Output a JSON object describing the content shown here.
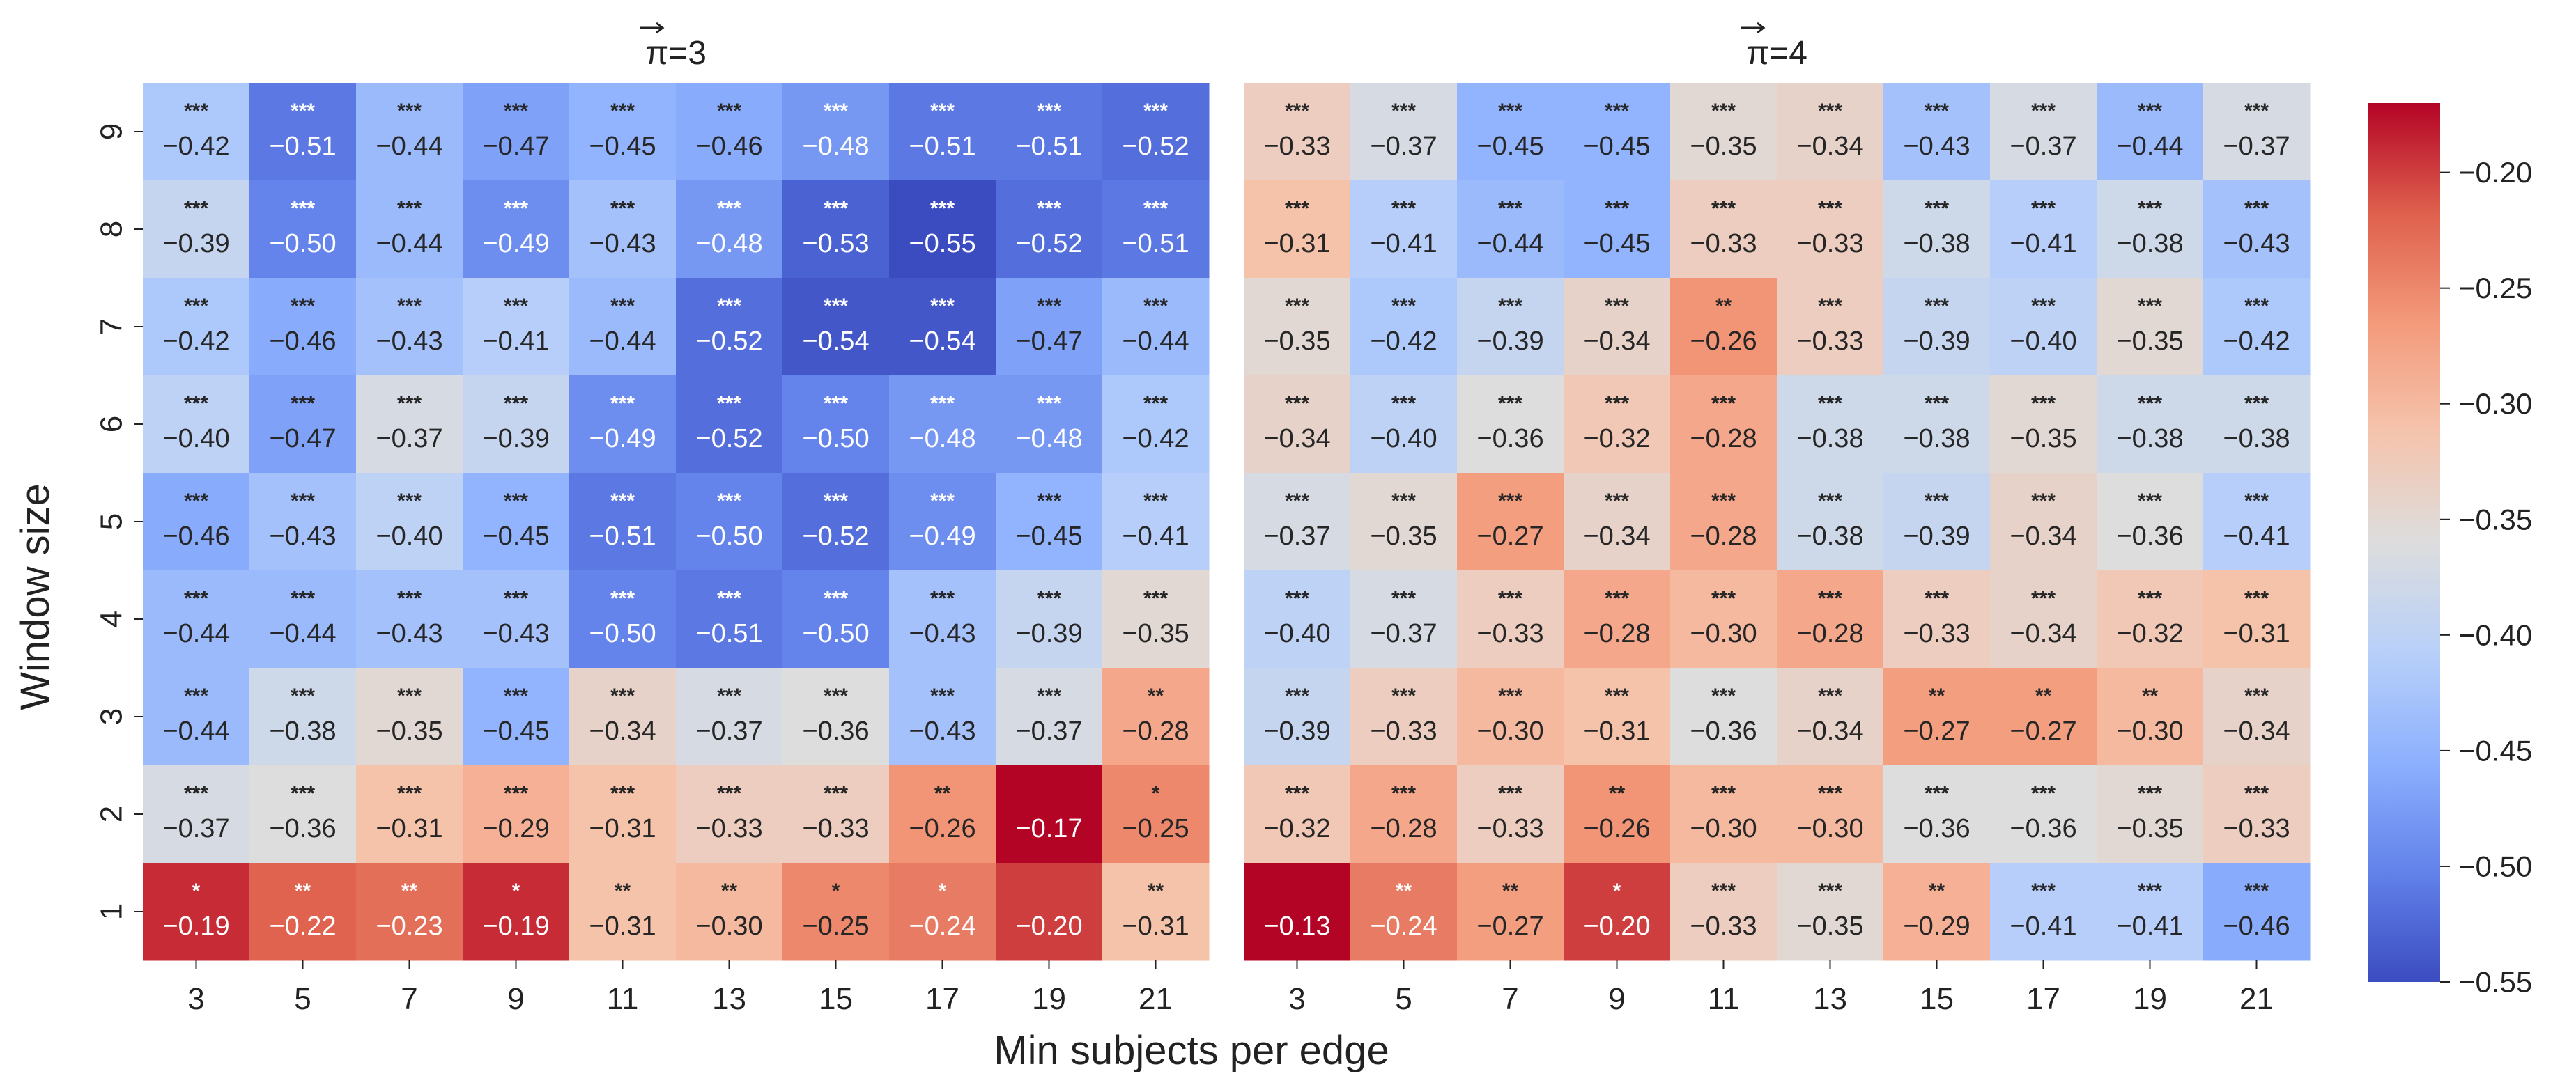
{
  "chart_data": {
    "type": "heatmap",
    "xlabel": "Min subjects per edge",
    "ylabel": "Window size",
    "x_categories": [
      "3",
      "5",
      "7",
      "9",
      "11",
      "13",
      "15",
      "17",
      "19",
      "21"
    ],
    "y_categories": [
      "9",
      "8",
      "7",
      "6",
      "5",
      "4",
      "3",
      "2",
      "1"
    ],
    "colorbar": {
      "colormap": "coolwarm",
      "vmin": -0.55,
      "vmax": -0.17,
      "ticks": [
        -0.2,
        -0.25,
        -0.3,
        -0.35,
        -0.4,
        -0.45,
        -0.5,
        -0.55
      ],
      "tick_labels": [
        "−0.20",
        "−0.25",
        "−0.30",
        "−0.35",
        "−0.40",
        "−0.45",
        "−0.50",
        "−0.55"
      ]
    },
    "panels": [
      {
        "title": "π⃗=3",
        "title_symbol": "π",
        "title_value": "=3",
        "values": [
          [
            -0.42,
            -0.51,
            -0.44,
            -0.47,
            -0.45,
            -0.46,
            -0.48,
            -0.51,
            -0.51,
            -0.52
          ],
          [
            -0.39,
            -0.5,
            -0.44,
            -0.49,
            -0.43,
            -0.48,
            -0.53,
            -0.55,
            -0.52,
            -0.51
          ],
          [
            -0.42,
            -0.46,
            -0.43,
            -0.41,
            -0.44,
            -0.52,
            -0.54,
            -0.54,
            -0.47,
            -0.44
          ],
          [
            -0.4,
            -0.47,
            -0.37,
            -0.39,
            -0.49,
            -0.52,
            -0.5,
            -0.48,
            -0.48,
            -0.42
          ],
          [
            -0.46,
            -0.43,
            -0.4,
            -0.45,
            -0.51,
            -0.5,
            -0.52,
            -0.49,
            -0.45,
            -0.41
          ],
          [
            -0.44,
            -0.44,
            -0.43,
            -0.43,
            -0.5,
            -0.51,
            -0.5,
            -0.43,
            -0.39,
            -0.35
          ],
          [
            -0.44,
            -0.38,
            -0.35,
            -0.45,
            -0.34,
            -0.37,
            -0.36,
            -0.43,
            -0.37,
            -0.28
          ],
          [
            -0.37,
            -0.36,
            -0.31,
            -0.29,
            -0.31,
            -0.33,
            -0.33,
            -0.26,
            -0.17,
            -0.25
          ],
          [
            -0.19,
            -0.22,
            -0.23,
            -0.19,
            -0.31,
            -0.3,
            -0.25,
            -0.24,
            -0.2,
            -0.31
          ]
        ],
        "labels": [
          [
            "−0.42",
            "−0.51",
            "−0.44",
            "−0.47",
            "−0.45",
            "−0.46",
            "−0.48",
            "−0.51",
            "−0.51",
            "−0.52"
          ],
          [
            "−0.39",
            "−0.50",
            "−0.44",
            "−0.49",
            "−0.43",
            "−0.48",
            "−0.53",
            "−0.55",
            "−0.52",
            "−0.51"
          ],
          [
            "−0.42",
            "−0.46",
            "−0.43",
            "−0.41",
            "−0.44",
            "−0.52",
            "−0.54",
            "−0.54",
            "−0.47",
            "−0.44"
          ],
          [
            "−0.40",
            "−0.47",
            "−0.37",
            "−0.39",
            "−0.49",
            "−0.52",
            "−0.50",
            "−0.48",
            "−0.48",
            "−0.42"
          ],
          [
            "−0.46",
            "−0.43",
            "−0.40",
            "−0.45",
            "−0.51",
            "−0.50",
            "−0.52",
            "−0.49",
            "−0.45",
            "−0.41"
          ],
          [
            "−0.44",
            "−0.44",
            "−0.43",
            "−0.43",
            "−0.50",
            "−0.51",
            "−0.50",
            "−0.43",
            "−0.39",
            "−0.35"
          ],
          [
            "−0.44",
            "−0.38",
            "−0.35",
            "−0.45",
            "−0.34",
            "−0.37",
            "−0.36",
            "−0.43",
            "−0.37",
            "−0.28"
          ],
          [
            "−0.37",
            "−0.36",
            "−0.31",
            "−0.29",
            "−0.31",
            "−0.33",
            "−0.33",
            "−0.26",
            "−0.17",
            "−0.25"
          ],
          [
            "−0.19",
            "−0.22",
            "−0.23",
            "−0.19",
            "−0.31",
            "−0.30",
            "−0.25",
            "−0.24",
            "−0.20",
            "−0.31"
          ]
        ],
        "significance": [
          [
            "***",
            "***",
            "***",
            "***",
            "***",
            "***",
            "***",
            "***",
            "***",
            "***"
          ],
          [
            "***",
            "***",
            "***",
            "***",
            "***",
            "***",
            "***",
            "***",
            "***",
            "***"
          ],
          [
            "***",
            "***",
            "***",
            "***",
            "***",
            "***",
            "***",
            "***",
            "***",
            "***"
          ],
          [
            "***",
            "***",
            "***",
            "***",
            "***",
            "***",
            "***",
            "***",
            "***",
            "***"
          ],
          [
            "***",
            "***",
            "***",
            "***",
            "***",
            "***",
            "***",
            "***",
            "***",
            "***"
          ],
          [
            "***",
            "***",
            "***",
            "***",
            "***",
            "***",
            "***",
            "***",
            "***",
            "***"
          ],
          [
            "***",
            "***",
            "***",
            "***",
            "***",
            "***",
            "***",
            "***",
            "***",
            "**"
          ],
          [
            "***",
            "***",
            "***",
            "***",
            "***",
            "***",
            "***",
            "**",
            "",
            "*"
          ],
          [
            "*",
            "**",
            "**",
            "*",
            "**",
            "**",
            "*",
            "*",
            "",
            "**"
          ]
        ]
      },
      {
        "title": "π⃗=4",
        "title_symbol": "π",
        "title_value": "=4",
        "values": [
          [
            -0.33,
            -0.37,
            -0.45,
            -0.45,
            -0.35,
            -0.34,
            -0.43,
            -0.37,
            -0.44,
            -0.37
          ],
          [
            -0.31,
            -0.41,
            -0.44,
            -0.45,
            -0.33,
            -0.33,
            -0.38,
            -0.41,
            -0.38,
            -0.43
          ],
          [
            -0.35,
            -0.42,
            -0.39,
            -0.34,
            -0.26,
            -0.33,
            -0.39,
            -0.4,
            -0.35,
            -0.42
          ],
          [
            -0.34,
            -0.4,
            -0.36,
            -0.32,
            -0.28,
            -0.38,
            -0.38,
            -0.35,
            -0.38,
            -0.38
          ],
          [
            -0.37,
            -0.35,
            -0.27,
            -0.34,
            -0.28,
            -0.38,
            -0.39,
            -0.34,
            -0.36,
            -0.41
          ],
          [
            -0.4,
            -0.37,
            -0.33,
            -0.28,
            -0.3,
            -0.28,
            -0.33,
            -0.34,
            -0.32,
            -0.31
          ],
          [
            -0.39,
            -0.33,
            -0.3,
            -0.31,
            -0.36,
            -0.34,
            -0.27,
            -0.27,
            -0.3,
            -0.34
          ],
          [
            -0.32,
            -0.28,
            -0.33,
            -0.26,
            -0.3,
            -0.3,
            -0.36,
            -0.36,
            -0.35,
            -0.33
          ],
          [
            -0.13,
            -0.24,
            -0.27,
            -0.2,
            -0.33,
            -0.35,
            -0.29,
            -0.41,
            -0.41,
            -0.46
          ]
        ],
        "labels": [
          [
            "−0.33",
            "−0.37",
            "−0.45",
            "−0.45",
            "−0.35",
            "−0.34",
            "−0.43",
            "−0.37",
            "−0.44",
            "−0.37"
          ],
          [
            "−0.31",
            "−0.41",
            "−0.44",
            "−0.45",
            "−0.33",
            "−0.33",
            "−0.38",
            "−0.41",
            "−0.38",
            "−0.43"
          ],
          [
            "−0.35",
            "−0.42",
            "−0.39",
            "−0.34",
            "−0.26",
            "−0.33",
            "−0.39",
            "−0.40",
            "−0.35",
            "−0.42"
          ],
          [
            "−0.34",
            "−0.40",
            "−0.36",
            "−0.32",
            "−0.28",
            "−0.38",
            "−0.38",
            "−0.35",
            "−0.38",
            "−0.38"
          ],
          [
            "−0.37",
            "−0.35",
            "−0.27",
            "−0.34",
            "−0.28",
            "−0.38",
            "−0.39",
            "−0.34",
            "−0.36",
            "−0.41"
          ],
          [
            "−0.40",
            "−0.37",
            "−0.33",
            "−0.28",
            "−0.30",
            "−0.28",
            "−0.33",
            "−0.34",
            "−0.32",
            "−0.31"
          ],
          [
            "−0.39",
            "−0.33",
            "−0.30",
            "−0.31",
            "−0.36",
            "−0.34",
            "−0.27",
            "−0.27",
            "−0.30",
            "−0.34"
          ],
          [
            "−0.32",
            "−0.28",
            "−0.33",
            "−0.26",
            "−0.30",
            "−0.30",
            "−0.36",
            "−0.36",
            "−0.35",
            "−0.33"
          ],
          [
            "−0.13",
            "−0.24",
            "−0.27",
            "−0.20",
            "−0.33",
            "−0.35",
            "−0.29",
            "−0.41",
            "−0.41",
            "−0.46"
          ]
        ],
        "significance": [
          [
            "***",
            "***",
            "***",
            "***",
            "***",
            "***",
            "***",
            "***",
            "***",
            "***"
          ],
          [
            "***",
            "***",
            "***",
            "***",
            "***",
            "***",
            "***",
            "***",
            "***",
            "***"
          ],
          [
            "***",
            "***",
            "***",
            "***",
            "**",
            "***",
            "***",
            "***",
            "***",
            "***"
          ],
          [
            "***",
            "***",
            "***",
            "***",
            "***",
            "***",
            "***",
            "***",
            "***",
            "***"
          ],
          [
            "***",
            "***",
            "***",
            "***",
            "***",
            "***",
            "***",
            "***",
            "***",
            "***"
          ],
          [
            "***",
            "***",
            "***",
            "***",
            "***",
            "***",
            "***",
            "***",
            "***",
            "***"
          ],
          [
            "***",
            "***",
            "***",
            "***",
            "***",
            "***",
            "**",
            "**",
            "**",
            "***"
          ],
          [
            "***",
            "***",
            "***",
            "**",
            "***",
            "***",
            "***",
            "***",
            "***",
            "***"
          ],
          [
            "",
            "**",
            "**",
            "*",
            "***",
            "***",
            "**",
            "***",
            "***",
            "***"
          ]
        ]
      }
    ]
  }
}
